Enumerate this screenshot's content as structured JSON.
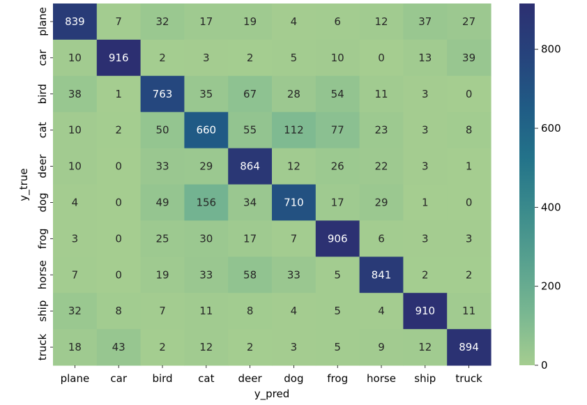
{
  "chart_data": {
    "type": "heatmap",
    "xlabel": "y_pred",
    "ylabel": "y_true",
    "x_categories": [
      "plane",
      "car",
      "bird",
      "cat",
      "deer",
      "dog",
      "frog",
      "horse",
      "ship",
      "truck"
    ],
    "y_categories": [
      "plane",
      "car",
      "bird",
      "cat",
      "deer",
      "dog",
      "frog",
      "horse",
      "ship",
      "truck"
    ],
    "values": [
      [
        839,
        7,
        32,
        17,
        19,
        4,
        6,
        12,
        37,
        27
      ],
      [
        10,
        916,
        2,
        3,
        2,
        5,
        10,
        0,
        13,
        39
      ],
      [
        38,
        1,
        763,
        35,
        67,
        28,
        54,
        11,
        3,
        0
      ],
      [
        10,
        2,
        50,
        660,
        55,
        112,
        77,
        23,
        3,
        8
      ],
      [
        10,
        0,
        33,
        29,
        864,
        12,
        26,
        22,
        3,
        1
      ],
      [
        4,
        0,
        49,
        156,
        34,
        710,
        17,
        29,
        1,
        0
      ],
      [
        3,
        0,
        25,
        30,
        17,
        7,
        906,
        6,
        3,
        3
      ],
      [
        7,
        0,
        19,
        33,
        58,
        33,
        5,
        841,
        2,
        2
      ],
      [
        32,
        8,
        7,
        11,
        8,
        4,
        5,
        4,
        910,
        11
      ],
      [
        18,
        43,
        2,
        12,
        2,
        3,
        5,
        9,
        12,
        894
      ]
    ],
    "colorbar": {
      "min": 0,
      "max": 916,
      "ticks": [
        0,
        200,
        400,
        600,
        800
      ],
      "colormap": "crest",
      "colors": [
        "#a5cd90",
        "#79b791",
        "#58a18f",
        "#3b8b8c",
        "#23738a",
        "#205b85",
        "#26437c",
        "#2c2f71"
      ]
    }
  }
}
